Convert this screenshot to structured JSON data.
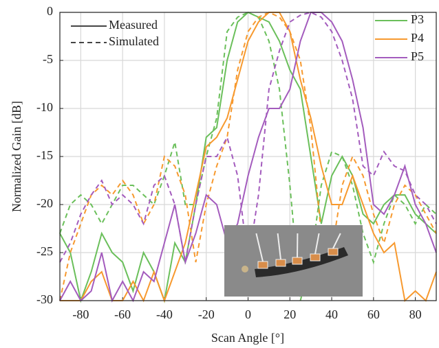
{
  "chart_data": {
    "type": "line",
    "x_label": "Scan Angle [°]",
    "y_label": "Normalized Gain [dB]",
    "xlim": [
      -90,
      90
    ],
    "xticks": [
      -80,
      -60,
      -40,
      -20,
      0,
      20,
      40,
      60,
      80
    ],
    "ylim": [
      -30,
      0
    ],
    "yticks": [
      0,
      -5,
      -10,
      -15,
      -20,
      -25,
      -30
    ],
    "grid": true,
    "x": [
      -90,
      -85,
      -80,
      -75,
      -70,
      -65,
      -60,
      -55,
      -50,
      -45,
      -40,
      -35,
      -30,
      -25,
      -20,
      -15,
      -10,
      -5,
      0,
      5,
      10,
      15,
      20,
      25,
      30,
      35,
      40,
      45,
      50,
      55,
      60,
      65,
      70,
      75,
      80,
      85,
      90
    ],
    "line_styles": [
      {
        "label": "Measured",
        "dash": "solid"
      },
      {
        "label": "Simulated",
        "dash": "dashed"
      }
    ],
    "series": [
      {
        "name": "P3",
        "color": "#6abf5a",
        "measured": [
          -23,
          -25,
          -30,
          -27,
          -23,
          -25,
          -26,
          -29,
          -25,
          -27,
          -30,
          -24,
          -26,
          -20,
          -13,
          -12,
          -5,
          -1,
          0,
          -0.5,
          -1,
          -3,
          -6,
          -8,
          -15,
          -22,
          -17,
          -15,
          -17,
          -21,
          -22,
          -20,
          -19,
          -19,
          -21,
          -22,
          -23
        ],
        "simulated": [
          -23,
          -20,
          -19,
          -20,
          -22,
          -20,
          -18,
          -18,
          -19,
          -20,
          -17,
          -13.5,
          -20,
          -20,
          -15,
          -11,
          -2,
          -0.5,
          0,
          -0.5,
          -3,
          -8,
          -18,
          -30,
          -26,
          -18,
          -14.5,
          -15,
          -18,
          -23,
          -26,
          -22,
          -19,
          -20,
          -22,
          -20,
          -21
        ]
      },
      {
        "name": "P4",
        "color": "#f7992e",
        "measured": [
          -30,
          -30,
          -30,
          -28,
          -27,
          -30,
          -30,
          -28,
          -30,
          -27,
          -30,
          -27,
          -24,
          -19,
          -14,
          -13,
          -11,
          -7,
          -3,
          -1,
          0,
          0,
          -2,
          -7,
          -11,
          -16,
          -20,
          -20,
          -17,
          -20,
          -23,
          -25,
          -24,
          -30,
          -29,
          -30,
          -27
        ],
        "simulated": [
          -30,
          -25,
          -22,
          -19,
          -18,
          -19,
          -17.5,
          -19,
          -22,
          -20,
          -15,
          -16,
          -19,
          -26,
          -20,
          -16,
          -13,
          -6,
          -2,
          -0.5,
          0,
          -0.5,
          -2,
          -5,
          -12,
          -23,
          -25,
          -18,
          -15,
          -17,
          -21,
          -24,
          -20,
          -18,
          -19,
          -21,
          -23
        ]
      },
      {
        "name": "P5",
        "color": "#a35bbd",
        "measured": [
          -30,
          -28,
          -30,
          -29,
          -25,
          -30,
          -28,
          -30,
          -27,
          -28,
          -24,
          -20,
          -26,
          -23,
          -19,
          -20,
          -24,
          -22,
          -17,
          -13,
          -10,
          -10,
          -8,
          -3,
          0,
          0,
          -1,
          -3,
          -7,
          -12,
          -20,
          -21,
          -19,
          -16,
          -20,
          -22,
          -25
        ],
        "simulated": [
          -26,
          -24,
          -21,
          -19,
          -17.5,
          -20,
          -19,
          -20,
          -22,
          -18,
          -17,
          -20,
          -26,
          -20,
          -15,
          -15,
          -13,
          -17,
          -26,
          -19,
          -8,
          -4,
          -1,
          -0.3,
          0,
          -0.5,
          -2,
          -5,
          -9,
          -16,
          -17,
          -14.5,
          -16,
          -16.5,
          -19,
          -20,
          -22
        ]
      }
    ]
  }
}
